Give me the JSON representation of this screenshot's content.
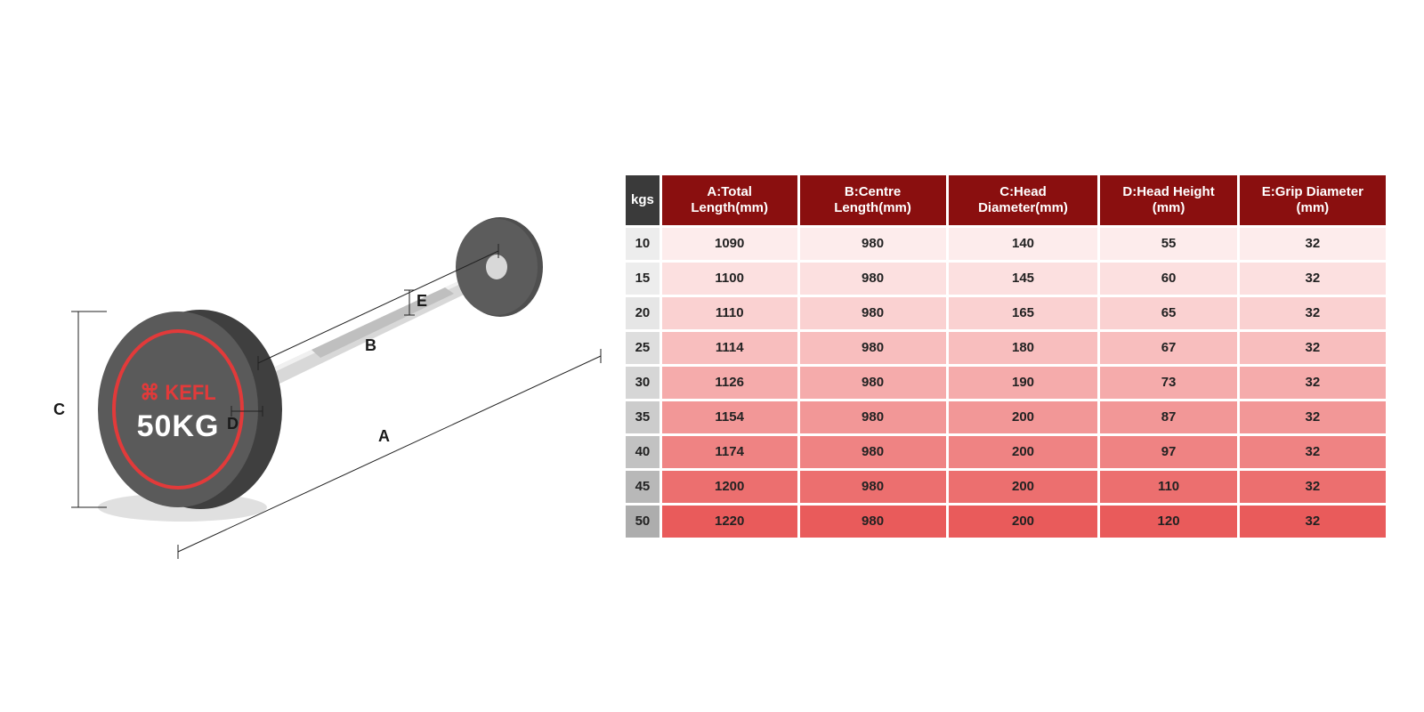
{
  "diagram": {
    "brand": "KEFL",
    "weight_label": "50KG",
    "labels": {
      "A": "A",
      "B": "B",
      "C": "C",
      "D": "D",
      "E": "E"
    },
    "colors": {
      "plate": "#595959",
      "ring": "#e23a3a",
      "bar": "#cfcfcf",
      "brand_text": "#e23a3a",
      "weight_text": "#ffffff"
    }
  },
  "table": {
    "header_bg_kgs": "#3a3a3a",
    "header_bg": "#8a0f0f",
    "header_text": "#ffffff",
    "columns": [
      "kgs",
      "A:Total Length(mm)",
      "B:Centre Length(mm)",
      "C:Head Diameter(mm)",
      "D:Head Height (mm)",
      "E:Grip Diameter (mm)"
    ],
    "kgs_bg_colors": [
      "#ededed",
      "#ededed",
      "#e6e6e6",
      "#dedede",
      "#d6d6d6",
      "#cccccc",
      "#c2c2c2",
      "#b8b8b8",
      "#adadad"
    ],
    "data_bg_colors": [
      "#fdecec",
      "#fce0e0",
      "#fad1d1",
      "#f8bebe",
      "#f5abab",
      "#f29797",
      "#ef8383",
      "#ec6f6f",
      "#e95b5b"
    ],
    "rows": [
      [
        "10",
        "1090",
        "980",
        "140",
        "55",
        "32"
      ],
      [
        "15",
        "1100",
        "980",
        "145",
        "60",
        "32"
      ],
      [
        "20",
        "1110",
        "980",
        "165",
        "65",
        "32"
      ],
      [
        "25",
        "1114",
        "980",
        "180",
        "67",
        "32"
      ],
      [
        "30",
        "1126",
        "980",
        "190",
        "73",
        "32"
      ],
      [
        "35",
        "1154",
        "980",
        "200",
        "87",
        "32"
      ],
      [
        "40",
        "1174",
        "980",
        "200",
        "97",
        "32"
      ],
      [
        "45",
        "1200",
        "980",
        "200",
        "110",
        "32"
      ],
      [
        "50",
        "1220",
        "980",
        "200",
        "120",
        "32"
      ]
    ]
  }
}
